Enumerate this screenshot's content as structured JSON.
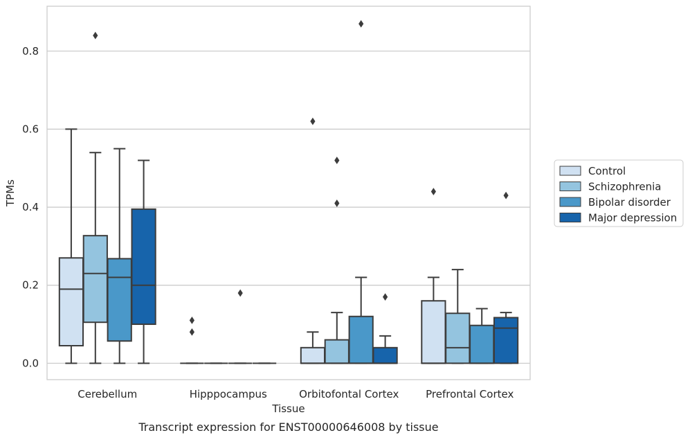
{
  "chart_data": {
    "type": "boxplot",
    "title": "",
    "caption": "Transcript expression for ENST00000646008 by tissue",
    "xlabel": "Tissue",
    "ylabel": "TPMs",
    "categories": [
      "Cerebellum",
      "Hipppocampus",
      "Orbitofontal Cortex",
      "Prefrontal Cortex"
    ],
    "ylim": [
      -0.042,
      0.915
    ],
    "yticks": [
      0.0,
      0.2,
      0.4,
      0.6,
      0.8
    ],
    "ytick_labels": [
      "0.0",
      "0.2",
      "0.4",
      "0.6",
      "0.8"
    ],
    "grid": true,
    "legend_position": "right",
    "series": [
      {
        "name": "Control",
        "color": "#d0e1f2",
        "boxes": [
          {
            "whislo": 0.0,
            "q1": 0.045,
            "med": 0.19,
            "q3": 0.27,
            "whishi": 0.6,
            "fliers": []
          },
          {
            "whislo": 0.0,
            "q1": 0.0,
            "med": 0.0,
            "q3": 0.0,
            "whishi": 0.0,
            "fliers": [
              0.11,
              0.08
            ]
          },
          {
            "whislo": 0.0,
            "q1": 0.0,
            "med": 0.0,
            "q3": 0.04,
            "whishi": 0.08,
            "fliers": [
              0.62
            ]
          },
          {
            "whislo": 0.0,
            "q1": 0.0,
            "med": 0.0,
            "q3": 0.16,
            "whishi": 0.22,
            "fliers": [
              0.44
            ]
          }
        ]
      },
      {
        "name": "Schizophrenia",
        "color": "#94c4df",
        "boxes": [
          {
            "whislo": 0.0,
            "q1": 0.105,
            "med": 0.23,
            "q3": 0.327,
            "whishi": 0.54,
            "fliers": [
              0.84
            ]
          },
          {
            "whislo": 0.0,
            "q1": 0.0,
            "med": 0.0,
            "q3": 0.0,
            "whishi": 0.0,
            "fliers": []
          },
          {
            "whislo": 0.0,
            "q1": 0.0,
            "med": 0.0,
            "q3": 0.06,
            "whishi": 0.13,
            "fliers": [
              0.52,
              0.41
            ]
          },
          {
            "whislo": 0.0,
            "q1": 0.0,
            "med": 0.04,
            "q3": 0.128,
            "whishi": 0.24,
            "fliers": []
          }
        ]
      },
      {
        "name": "Bipolar disorder",
        "color": "#4a98c9",
        "boxes": [
          {
            "whislo": 0.0,
            "q1": 0.057,
            "med": 0.22,
            "q3": 0.268,
            "whishi": 0.55,
            "fliers": []
          },
          {
            "whislo": 0.0,
            "q1": 0.0,
            "med": 0.0,
            "q3": 0.0,
            "whishi": 0.0,
            "fliers": [
              0.18
            ]
          },
          {
            "whislo": 0.0,
            "q1": 0.0,
            "med": 0.0,
            "q3": 0.12,
            "whishi": 0.22,
            "fliers": [
              0.87
            ]
          },
          {
            "whislo": 0.0,
            "q1": 0.0,
            "med": 0.0,
            "q3": 0.097,
            "whishi": 0.14,
            "fliers": []
          }
        ]
      },
      {
        "name": "Major depression",
        "color": "#1764ab",
        "boxes": [
          {
            "whislo": 0.0,
            "q1": 0.1,
            "med": 0.2,
            "q3": 0.395,
            "whishi": 0.52,
            "fliers": []
          },
          {
            "whislo": 0.0,
            "q1": 0.0,
            "med": 0.0,
            "q3": 0.0,
            "whishi": 0.0,
            "fliers": []
          },
          {
            "whislo": 0.0,
            "q1": 0.0,
            "med": 0.0,
            "q3": 0.04,
            "whishi": 0.07,
            "fliers": [
              0.17
            ]
          },
          {
            "whislo": 0.0,
            "q1": 0.0,
            "med": 0.09,
            "q3": 0.117,
            "whishi": 0.13,
            "fliers": [
              0.43
            ]
          }
        ]
      }
    ],
    "colors": {
      "grid": "#cccccc",
      "axis_frame": "#cccccc",
      "box_edge": "#3c3c3c",
      "text": "#262626"
    }
  }
}
